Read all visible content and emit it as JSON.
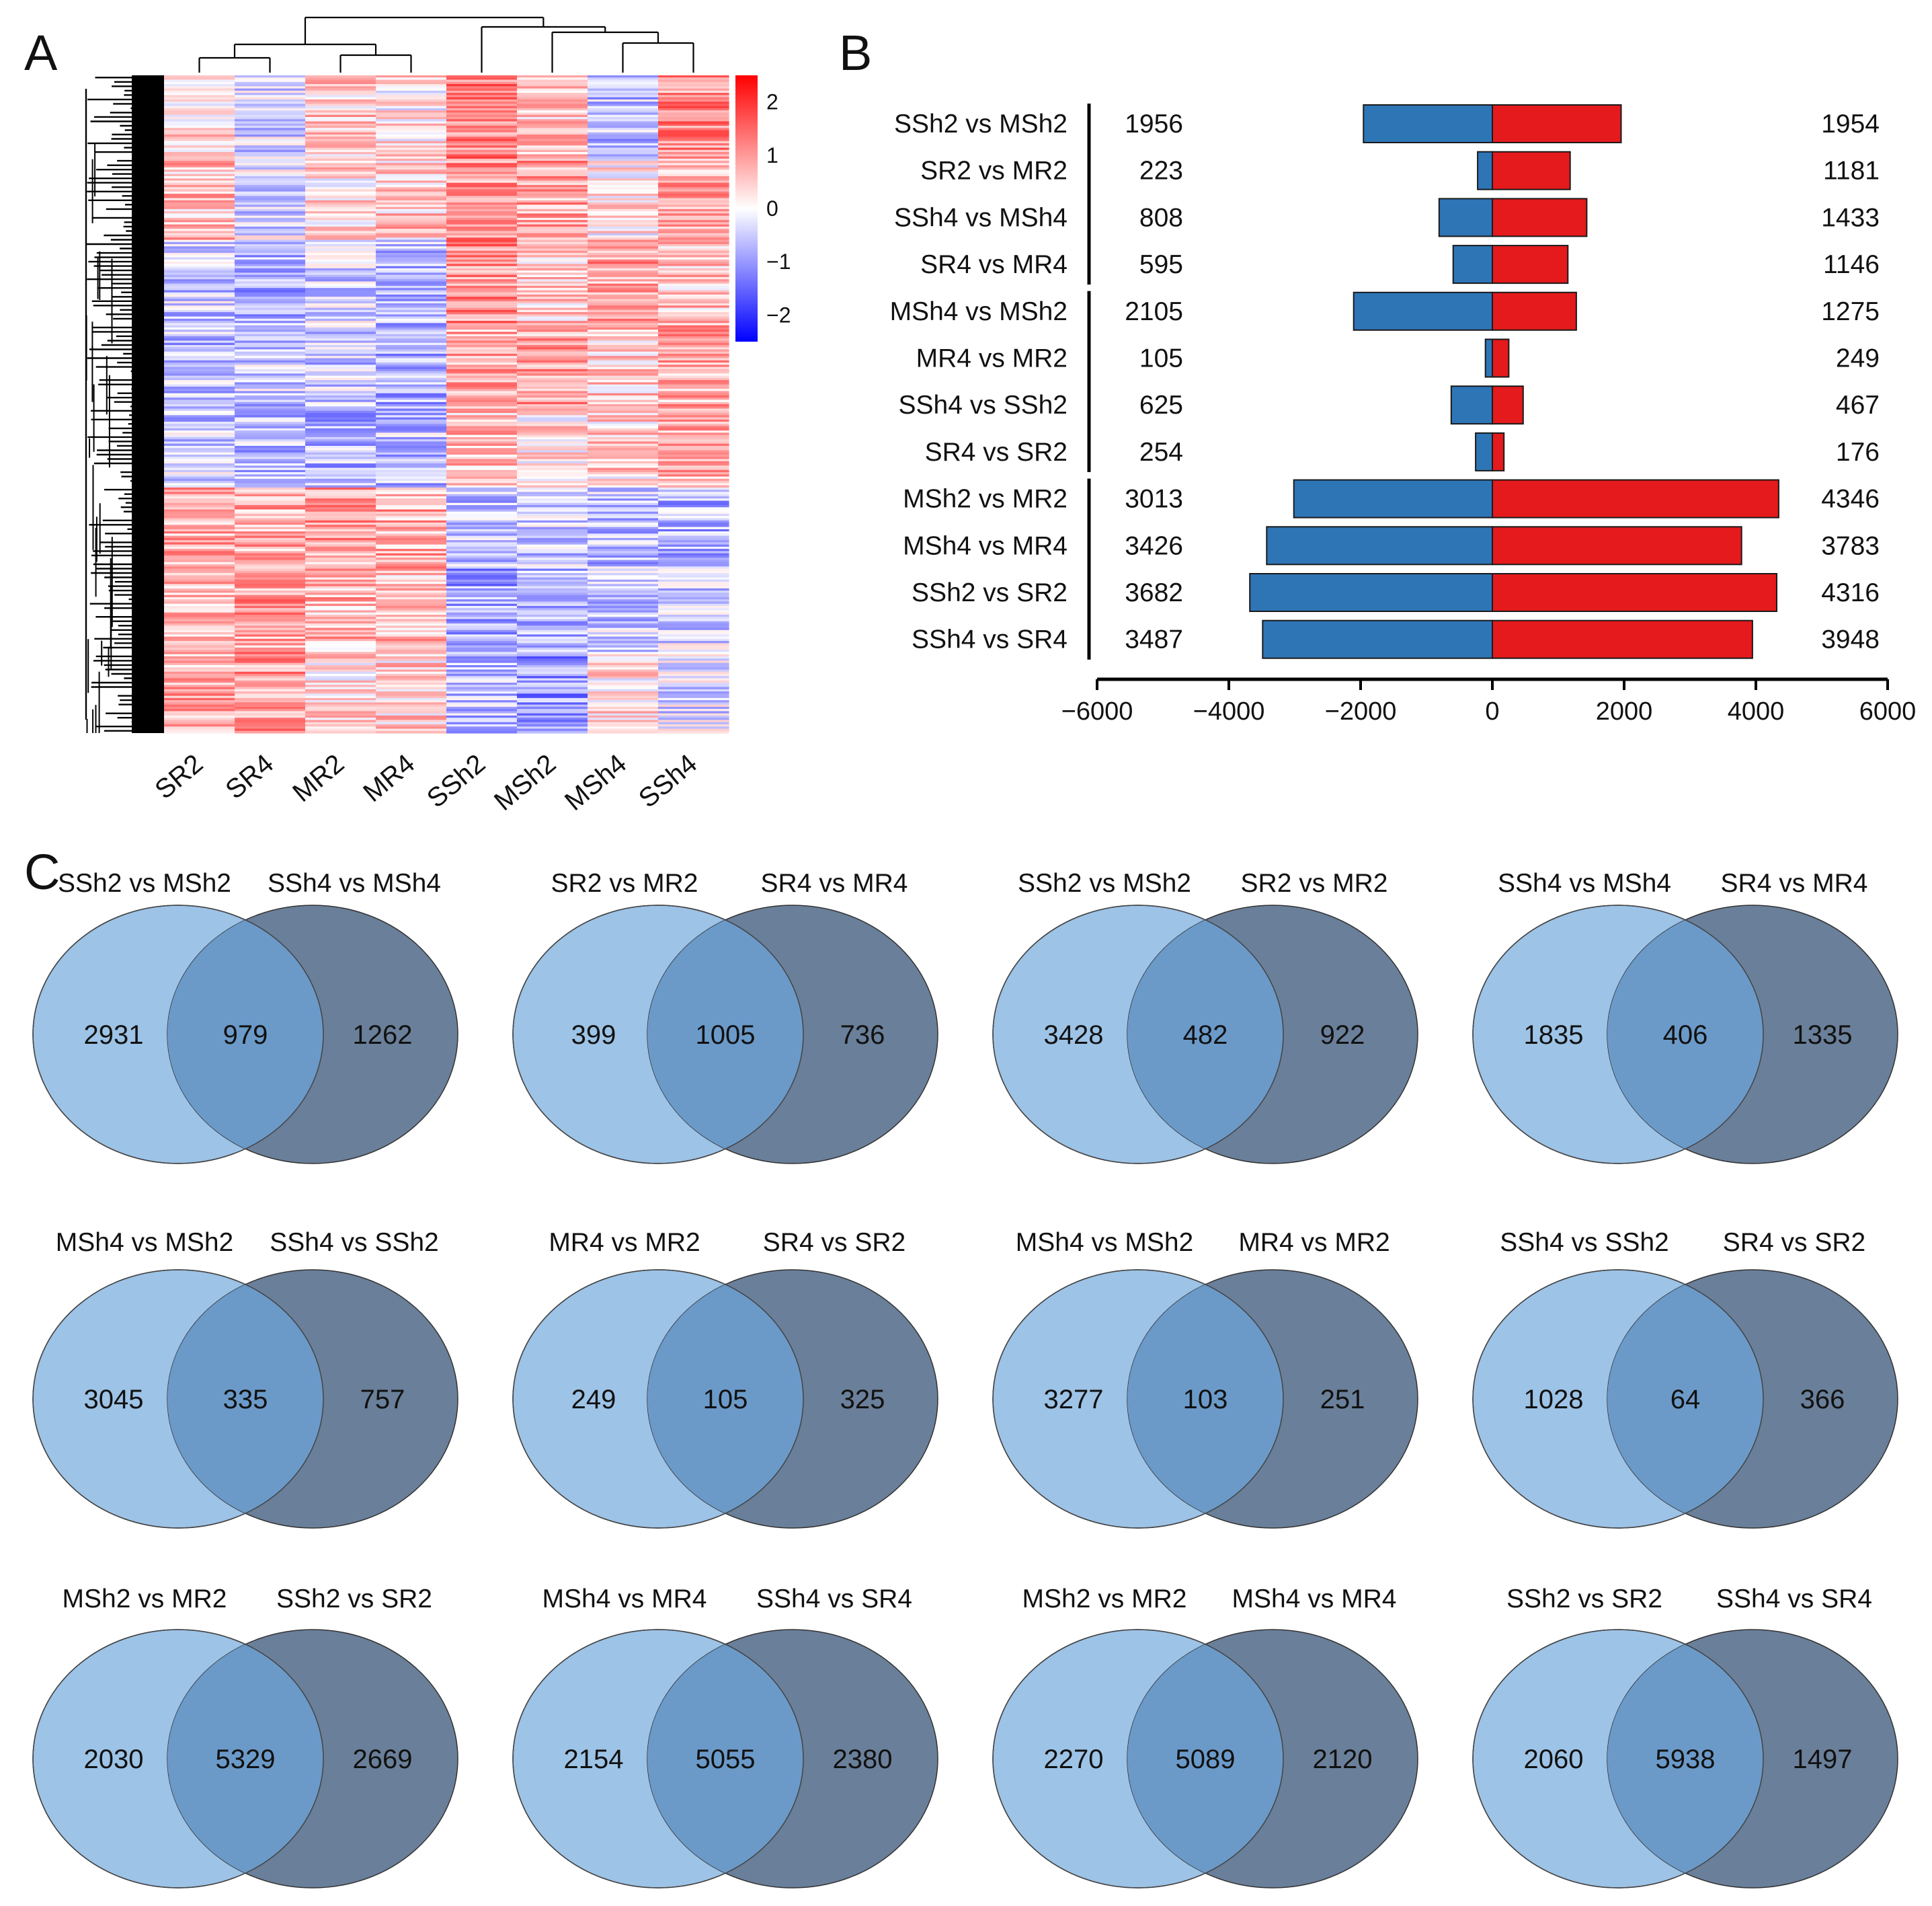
{
  "panels": {
    "a": "A",
    "b": "B",
    "c": "C"
  },
  "colors": {
    "down": "#2E75B6",
    "up": "#E41A1C",
    "heat_low": "#0000FF",
    "heat_mid": "#FFFFFF",
    "heat_high": "#FF0000",
    "venn_left": "#9DC3E6",
    "venn_right": "#6A7F99",
    "venn_overlap": "#6B9AC9"
  },
  "heatmap": {
    "samples": [
      "SR2",
      "SR4",
      "MR2",
      "MR4",
      "SSh2",
      "MSh2",
      "MSh4",
      "SSh4"
    ],
    "colorbar_ticks": [
      "2",
      "1",
      "0",
      "−1",
      "−2"
    ],
    "colorbar_values": [
      2,
      1,
      0,
      -1,
      -2
    ],
    "colorbar_range": [
      -2.5,
      2.5
    ],
    "cluster_profile": [
      [
        0.3,
        -0.4,
        0.5,
        0.2,
        1.2,
        0.6,
        -0.6,
        1.1
      ],
      [
        0.6,
        -0.3,
        0.3,
        0.5,
        1.0,
        0.9,
        0.2,
        0.8
      ],
      [
        -0.5,
        -0.8,
        -0.4,
        -0.6,
        1.1,
        0.5,
        0.9,
        0.6
      ],
      [
        -0.6,
        -0.5,
        -0.5,
        -0.7,
        0.8,
        0.9,
        0.5,
        0.8
      ],
      [
        -0.5,
        -0.6,
        -0.7,
        -0.6,
        0.6,
        0.3,
        0.4,
        0.8
      ],
      [
        0.8,
        0.8,
        0.9,
        0.8,
        -0.6,
        -0.5,
        -0.6,
        -0.7
      ],
      [
        0.7,
        0.9,
        0.7,
        0.6,
        -0.9,
        -0.7,
        -0.5,
        -0.4
      ],
      [
        0.8,
        0.9,
        0.3,
        0.4,
        -0.6,
        -1.0,
        0.3,
        -0.3
      ]
    ]
  },
  "chart_data": {
    "type": "bar",
    "orientation": "horizontal-diverging",
    "categories": [
      "SSh2 vs MSh2",
      "SR2 vs MR2",
      "SSh4 vs MSh4",
      "SR4 vs MR4",
      "MSh4 vs MSh2",
      "MR4 vs MR2",
      "SSh4 vs SSh2",
      "SR4 vs SR2",
      "MSh2 vs MR2",
      "MSh4 vs MR4",
      "SSh2 vs SR2",
      "SSh4 vs SR4"
    ],
    "series": [
      {
        "name": "Down-regulated",
        "values": [
          1956,
          223,
          808,
          595,
          2105,
          105,
          625,
          254,
          3013,
          3426,
          3682,
          3487
        ]
      },
      {
        "name": "Up-regulated",
        "values": [
          1954,
          1181,
          1433,
          1146,
          1275,
          249,
          467,
          176,
          4346,
          3783,
          4316,
          3948
        ]
      }
    ],
    "left_labels": [
      "1956",
      "223",
      "808",
      "595",
      "2105",
      "105",
      "625",
      "254",
      "3013",
      "3426",
      "3682",
      "3487"
    ],
    "right_labels": [
      "1954",
      "1181",
      "1433",
      "1146",
      "1275",
      "249",
      "467",
      "176",
      "4346",
      "3783",
      "4316",
      "3948"
    ],
    "xlim": [
      -6000,
      6000
    ],
    "xticks": [
      -6000,
      -4000,
      -2000,
      0,
      2000,
      4000,
      6000
    ],
    "xtick_labels": [
      "−6000",
      "−4000",
      "−2000",
      "0",
      "2000",
      "4000",
      "6000"
    ],
    "groups": [
      [
        0,
        3
      ],
      [
        4,
        7
      ],
      [
        8,
        11
      ]
    ],
    "title": "",
    "xlabel": "",
    "ylabel": ""
  },
  "venn": [
    {
      "left": "SSh2 vs MSh2",
      "right": "SSh4 vs MSh4",
      "a": "2931",
      "ab": "979",
      "b": "1262"
    },
    {
      "left": "SR2 vs MR2",
      "right": "SR4 vs MR4",
      "a": "399",
      "ab": "1005",
      "b": "736"
    },
    {
      "left": "SSh2 vs MSh2",
      "right": "SR2 vs MR2",
      "a": "3428",
      "ab": "482",
      "b": "922"
    },
    {
      "left": "SSh4 vs MSh4",
      "right": "SR4 vs MR4",
      "a": "1835",
      "ab": "406",
      "b": "1335"
    },
    {
      "left": "MSh4 vs MSh2",
      "right": "SSh4 vs SSh2",
      "a": "3045",
      "ab": "335",
      "b": "757"
    },
    {
      "left": "MR4 vs MR2",
      "right": "SR4 vs SR2",
      "a": "249",
      "ab": "105",
      "b": "325"
    },
    {
      "left": "MSh4 vs MSh2",
      "right": "MR4 vs MR2",
      "a": "3277",
      "ab": "103",
      "b": "251"
    },
    {
      "left": "SSh4 vs SSh2",
      "right": "SR4 vs SR2",
      "a": "1028",
      "ab": "64",
      "b": "366"
    },
    {
      "left": "MSh2 vs MR2",
      "right": "SSh2 vs SR2",
      "a": "2030",
      "ab": "5329",
      "b": "2669"
    },
    {
      "left": "MSh4 vs MR4",
      "right": "SSh4 vs SR4",
      "a": "2154",
      "ab": "5055",
      "b": "2380"
    },
    {
      "left": "MSh2 vs MR2",
      "right": "MSh4 vs MR4",
      "a": "2270",
      "ab": "5089",
      "b": "2120"
    },
    {
      "left": "SSh2 vs SR2",
      "right": "SSh4 vs SR4",
      "a": "2060",
      "ab": "5938",
      "b": "1497"
    }
  ]
}
